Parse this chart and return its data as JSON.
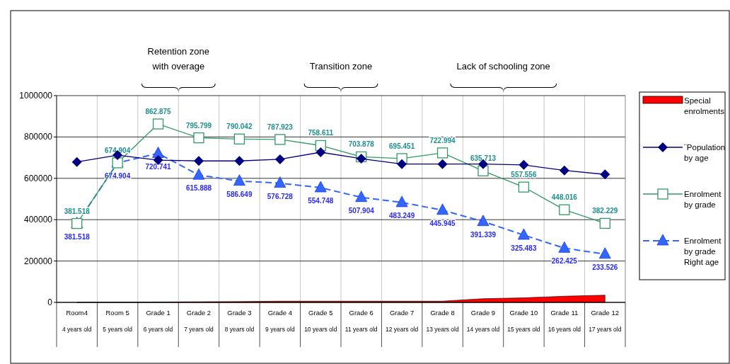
{
  "chart_data": {
    "type": "line",
    "categories": [
      "Room4\n4 years old",
      "Room 5\n5 years old",
      "Grade 1\n6 years old",
      "Grade 2\n7 years old",
      "Grade 3\n8 years old",
      "Grade 4\n9 years old",
      "Grade 5\n10 years old",
      "Grade 6\n11 years old",
      "Grade 7\n12 years old",
      "Grade 8\n13 years old",
      "Grade 9\n14 years old",
      "Grade 10\n15 years old",
      "Grade 11\n16 years old",
      "Grade 12\n17 years old"
    ],
    "ylim": [
      0,
      1000000
    ],
    "yticks": [
      0,
      200000,
      400000,
      600000,
      800000,
      1000000
    ],
    "grid": true,
    "legend": "right",
    "annotations": [
      "Retention zone\nwith overage",
      "Transition zone",
      "Lack of schooling zone"
    ],
    "series": [
      {
        "name": "Special enrolments",
        "type": "area",
        "color": "#ff0000",
        "values": [
          0,
          1000,
          2000,
          3000,
          4000,
          6000,
          6000,
          6000,
          6000,
          6000,
          18000,
          22000,
          30000,
          35000
        ]
      },
      {
        "name": "¨Population by age",
        "color": "#000080",
        "marker": "diamond",
        "line_style": "solid",
        "values": [
          679000,
          712000,
          688000,
          684000,
          684000,
          692000,
          726000,
          695000,
          669000,
          669000,
          669000,
          665000,
          638000,
          619000
        ]
      },
      {
        "name": "Enrolment by grade",
        "color": "#339966",
        "marker": "square",
        "line_style": "solid",
        "values": [
          381518,
          674904,
          862875,
          795799,
          790042,
          787923,
          758611,
          703878,
          695451,
          722994,
          635713,
          557556,
          448016,
          382229
        ],
        "value_labels": [
          "381.518",
          "674.904",
          "862.875",
          "795.799",
          "790.042",
          "787.923",
          "758.611",
          "703.878",
          "695.451",
          "722.994",
          "635.713",
          "557.556",
          "448.016",
          "382.229"
        ]
      },
      {
        "name": "Enrolment by grade Right age",
        "color": "#3366ff",
        "marker": "triangle",
        "line_style": "dashed",
        "values": [
          381518,
          674904,
          720741,
          615888,
          586649,
          576728,
          554748,
          507904,
          483249,
          445945,
          391339,
          325483,
          262425,
          233526
        ],
        "value_labels": [
          "381.518",
          "674.904",
          "720.741",
          "615.888",
          "586.649",
          "576.728",
          "554.748",
          "507.904",
          "483.249",
          "445.945",
          "391.339",
          "325.483",
          "262.425",
          "233.526"
        ]
      }
    ]
  }
}
